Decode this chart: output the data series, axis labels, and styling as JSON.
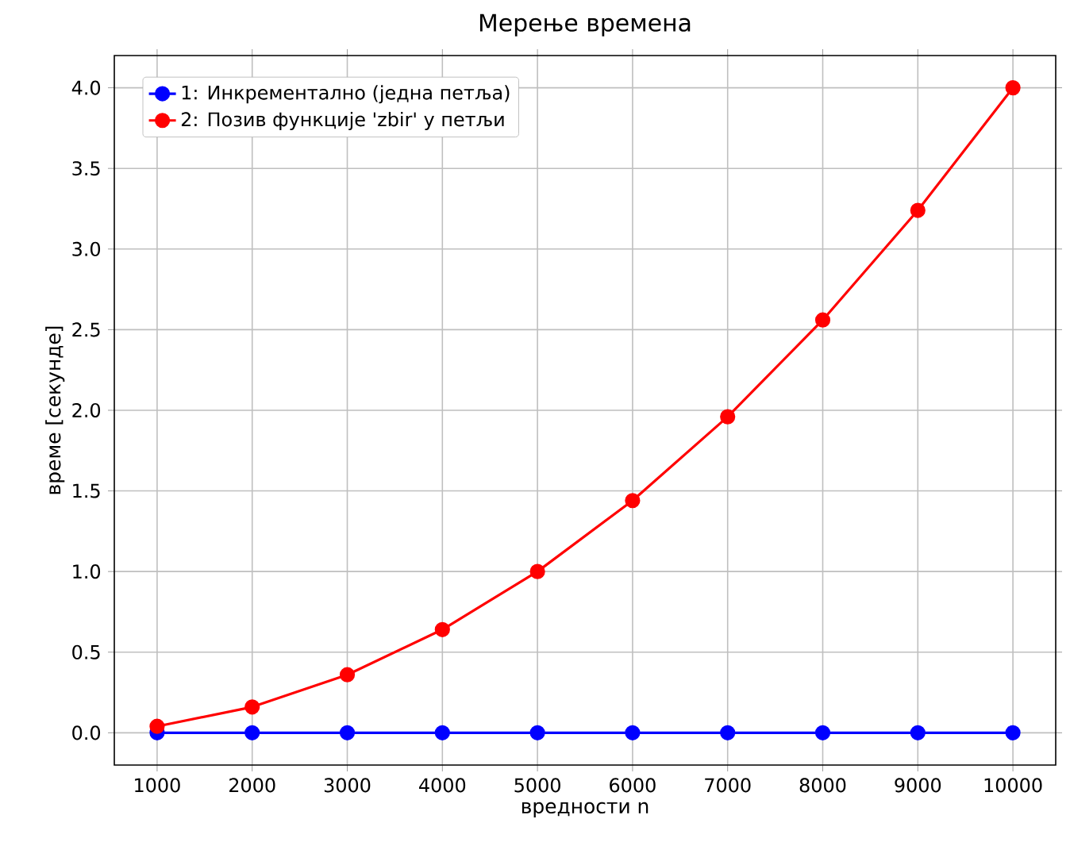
{
  "chart_data": {
    "type": "line",
    "title": "Мерење времена",
    "xlabel": "вредности n",
    "ylabel": "време [секунде]",
    "x": [
      1000,
      2000,
      3000,
      4000,
      5000,
      6000,
      7000,
      8000,
      9000,
      10000
    ],
    "series": [
      {
        "name": "1: Инкрементално (једна петља)",
        "color": "#0000ff",
        "values": [
          0,
          0,
          0,
          0,
          0,
          0,
          0,
          0,
          0,
          0
        ]
      },
      {
        "name": "2: Позив функције 'zbir' у петљи",
        "color": "#ff0000",
        "values": [
          0.04,
          0.16,
          0.36,
          0.64,
          1.0,
          1.44,
          1.96,
          2.56,
          3.24,
          4.0
        ]
      }
    ],
    "xlim": [
      550,
      10450
    ],
    "ylim": [
      -0.2,
      4.2
    ],
    "xticks": [
      1000,
      2000,
      3000,
      4000,
      5000,
      6000,
      7000,
      8000,
      9000,
      10000
    ],
    "yticks": [
      {
        "value": 0,
        "label": "0.0"
      },
      0.5,
      {
        "value": 1,
        "label": "1.0"
      },
      1.5,
      {
        "value": 2,
        "label": "2.0"
      },
      2.5,
      {
        "value": 3,
        "label": "3.0"
      },
      3.5,
      {
        "value": 4,
        "label": "4.0"
      }
    ],
    "grid": true,
    "legend": "top left",
    "marker": "circle",
    "line_style": "solid"
  }
}
